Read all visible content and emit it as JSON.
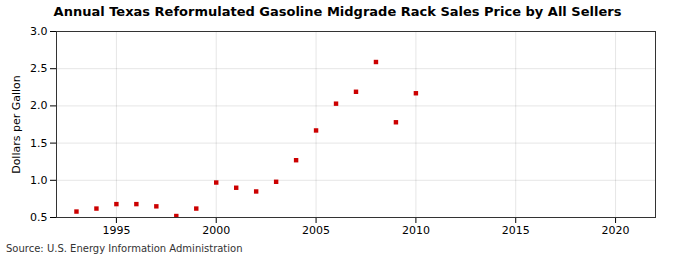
{
  "chart_data": {
    "type": "scatter",
    "title": "Annual Texas Reformulated Gasoline Midgrade Rack Sales Price by All Sellers",
    "ylabel": "Dollars per Gallon",
    "caption": "Source: U.S. Energy Information Administration",
    "x": [
      1993,
      1994,
      1995,
      1996,
      1997,
      1998,
      1999,
      2000,
      2001,
      2002,
      2003,
      2004,
      2005,
      2006,
      2007,
      2008,
      2009,
      2010
    ],
    "values": [
      0.58,
      0.62,
      0.68,
      0.68,
      0.65,
      0.52,
      0.62,
      0.97,
      0.9,
      0.85,
      0.98,
      1.27,
      1.67,
      2.03,
      2.19,
      2.59,
      1.78,
      2.17
    ],
    "color": "#cc0000",
    "marker": "square",
    "xlim": [
      1992,
      2022
    ],
    "xticks": [
      1995,
      2000,
      2005,
      2010,
      2015,
      2020
    ],
    "ylim": [
      0.5,
      3.0
    ],
    "yticks": [
      0.5,
      {
        "value": 1.0,
        "label": "1.0"
      },
      1.5,
      {
        "value": 2.0,
        "label": "2.0"
      },
      2.5,
      {
        "value": 3.0,
        "label": "3.0"
      }
    ],
    "grid": true
  }
}
